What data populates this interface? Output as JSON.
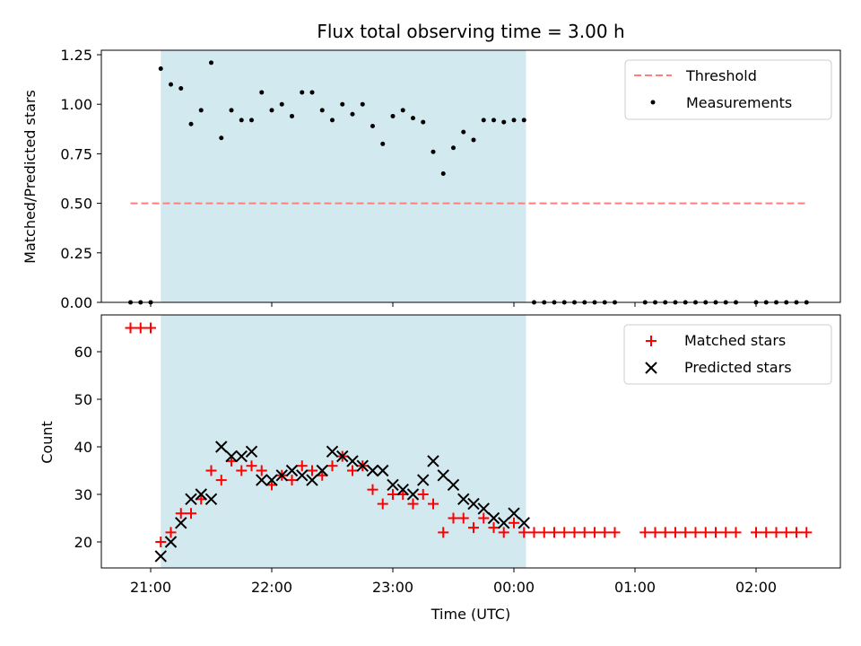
{
  "chart_data": [
    {
      "type": "scatter",
      "title": "Flux total observing time = 3.00 h",
      "xlabel": "",
      "ylabel": "Matched/Predicted stars",
      "ylim": [
        0,
        1.27
      ],
      "yticks": [
        "0.00",
        "0.25",
        "0.50",
        "0.75",
        "1.00",
        "1.25"
      ],
      "shaded_span": {
        "from": "21:05",
        "to": "00:06",
        "color": "#d3e9f0"
      },
      "legend_position": "top-right",
      "series": [
        {
          "name": "Threshold",
          "kind": "line",
          "style": "dashed",
          "color": "#ff7f7f",
          "points": [
            [
              "20:50",
              0.5
            ],
            [
              "02:25",
              0.5
            ]
          ]
        },
        {
          "name": "Measurements",
          "kind": "dots",
          "color": "#000000",
          "points": [
            [
              "20:50",
              0.0
            ],
            [
              "20:55",
              0.0
            ],
            [
              "21:00",
              0.0
            ],
            [
              "21:05",
              1.18
            ],
            [
              "21:10",
              1.1
            ],
            [
              "21:15",
              1.08
            ],
            [
              "21:20",
              0.9
            ],
            [
              "21:25",
              0.97
            ],
            [
              "21:30",
              1.21
            ],
            [
              "21:35",
              0.83
            ],
            [
              "21:40",
              0.97
            ],
            [
              "21:45",
              0.92
            ],
            [
              "21:50",
              0.92
            ],
            [
              "21:55",
              1.06
            ],
            [
              "22:00",
              0.97
            ],
            [
              "22:05",
              1.0
            ],
            [
              "22:10",
              0.94
            ],
            [
              "22:15",
              1.06
            ],
            [
              "22:20",
              1.06
            ],
            [
              "22:25",
              0.97
            ],
            [
              "22:30",
              0.92
            ],
            [
              "22:35",
              1.0
            ],
            [
              "22:40",
              0.95
            ],
            [
              "22:45",
              1.0
            ],
            [
              "22:50",
              0.89
            ],
            [
              "22:55",
              0.8
            ],
            [
              "23:00",
              0.94
            ],
            [
              "23:05",
              0.97
            ],
            [
              "23:10",
              0.93
            ],
            [
              "23:15",
              0.91
            ],
            [
              "23:20",
              0.76
            ],
            [
              "23:25",
              0.65
            ],
            [
              "23:30",
              0.78
            ],
            [
              "23:35",
              0.86
            ],
            [
              "23:40",
              0.82
            ],
            [
              "23:45",
              0.92
            ],
            [
              "23:50",
              0.92
            ],
            [
              "23:55",
              0.91
            ],
            [
              "00:00",
              0.92
            ],
            [
              "00:05",
              0.92
            ],
            [
              "00:10",
              0.0
            ],
            [
              "00:15",
              0.0
            ],
            [
              "00:20",
              0.0
            ],
            [
              "00:25",
              0.0
            ],
            [
              "00:30",
              0.0
            ],
            [
              "00:35",
              0.0
            ],
            [
              "00:40",
              0.0
            ],
            [
              "00:45",
              0.0
            ],
            [
              "00:50",
              0.0
            ],
            [
              "01:05",
              0.0
            ],
            [
              "01:10",
              0.0
            ],
            [
              "01:15",
              0.0
            ],
            [
              "01:20",
              0.0
            ],
            [
              "01:25",
              0.0
            ],
            [
              "01:30",
              0.0
            ],
            [
              "01:35",
              0.0
            ],
            [
              "01:40",
              0.0
            ],
            [
              "01:45",
              0.0
            ],
            [
              "01:50",
              0.0
            ],
            [
              "02:00",
              0.0
            ],
            [
              "02:05",
              0.0
            ],
            [
              "02:10",
              0.0
            ],
            [
              "02:15",
              0.0
            ],
            [
              "02:20",
              0.0
            ],
            [
              "02:25",
              0.0
            ]
          ]
        }
      ]
    },
    {
      "type": "scatter",
      "title": "",
      "xlabel": "Time (UTC)",
      "ylabel": "Count",
      "ylim": [
        15,
        67
      ],
      "yticks": [
        "20",
        "30",
        "40",
        "50",
        "60"
      ],
      "xticks": [
        "21:00",
        "22:00",
        "23:00",
        "00:00",
        "01:00",
        "02:00"
      ],
      "shaded_span": {
        "from": "21:05",
        "to": "00:06",
        "color": "#d3e9f0"
      },
      "legend_position": "top-right",
      "series": [
        {
          "name": "Matched stars",
          "kind": "plus",
          "color": "#ff0000",
          "points": [
            [
              "20:50",
              65
            ],
            [
              "20:55",
              65
            ],
            [
              "21:00",
              65
            ],
            [
              "21:05",
              20
            ],
            [
              "21:10",
              22
            ],
            [
              "21:15",
              26
            ],
            [
              "21:20",
              26
            ],
            [
              "21:25",
              29
            ],
            [
              "21:30",
              35
            ],
            [
              "21:35",
              33
            ],
            [
              "21:40",
              37
            ],
            [
              "21:45",
              35
            ],
            [
              "21:50",
              36
            ],
            [
              "21:55",
              35
            ],
            [
              "22:00",
              32
            ],
            [
              "22:05",
              34
            ],
            [
              "22:10",
              33
            ],
            [
              "22:15",
              36
            ],
            [
              "22:20",
              35
            ],
            [
              "22:25",
              34
            ],
            [
              "22:30",
              36
            ],
            [
              "22:35",
              38
            ],
            [
              "22:40",
              35
            ],
            [
              "22:45",
              36
            ],
            [
              "22:50",
              31
            ],
            [
              "22:55",
              28
            ],
            [
              "23:00",
              30
            ],
            [
              "23:05",
              30
            ],
            [
              "23:10",
              28
            ],
            [
              "23:15",
              30
            ],
            [
              "23:20",
              28
            ],
            [
              "23:25",
              22
            ],
            [
              "23:30",
              25
            ],
            [
              "23:35",
              25
            ],
            [
              "23:40",
              23
            ],
            [
              "23:45",
              25
            ],
            [
              "23:50",
              23
            ],
            [
              "23:55",
              22
            ],
            [
              "00:00",
              24
            ],
            [
              "00:05",
              22
            ],
            [
              "00:10",
              22
            ],
            [
              "00:15",
              22
            ],
            [
              "00:20",
              22
            ],
            [
              "00:25",
              22
            ],
            [
              "00:30",
              22
            ],
            [
              "00:35",
              22
            ],
            [
              "00:40",
              22
            ],
            [
              "00:45",
              22
            ],
            [
              "00:50",
              22
            ],
            [
              "01:05",
              22
            ],
            [
              "01:10",
              22
            ],
            [
              "01:15",
              22
            ],
            [
              "01:20",
              22
            ],
            [
              "01:25",
              22
            ],
            [
              "01:30",
              22
            ],
            [
              "01:35",
              22
            ],
            [
              "01:40",
              22
            ],
            [
              "01:45",
              22
            ],
            [
              "01:50",
              22
            ],
            [
              "02:00",
              22
            ],
            [
              "02:05",
              22
            ],
            [
              "02:10",
              22
            ],
            [
              "02:15",
              22
            ],
            [
              "02:20",
              22
            ],
            [
              "02:25",
              22
            ]
          ]
        },
        {
          "name": "Predicted stars",
          "kind": "cross",
          "color": "#000000",
          "points": [
            [
              "21:05",
              17
            ],
            [
              "21:10",
              20
            ],
            [
              "21:15",
              24
            ],
            [
              "21:20",
              29
            ],
            [
              "21:25",
              30
            ],
            [
              "21:30",
              29
            ],
            [
              "21:35",
              40
            ],
            [
              "21:40",
              38
            ],
            [
              "21:45",
              38
            ],
            [
              "21:50",
              39
            ],
            [
              "21:55",
              33
            ],
            [
              "22:00",
              33
            ],
            [
              "22:05",
              34
            ],
            [
              "22:10",
              35
            ],
            [
              "22:15",
              34
            ],
            [
              "22:20",
              33
            ],
            [
              "22:25",
              35
            ],
            [
              "22:30",
              39
            ],
            [
              "22:35",
              38
            ],
            [
              "22:40",
              37
            ],
            [
              "22:45",
              36
            ],
            [
              "22:50",
              35
            ],
            [
              "22:55",
              35
            ],
            [
              "23:00",
              32
            ],
            [
              "23:05",
              31
            ],
            [
              "23:10",
              30
            ],
            [
              "23:15",
              33
            ],
            [
              "23:20",
              37
            ],
            [
              "23:25",
              34
            ],
            [
              "23:30",
              32
            ],
            [
              "23:35",
              29
            ],
            [
              "23:40",
              28
            ],
            [
              "23:45",
              27
            ],
            [
              "23:50",
              25
            ],
            [
              "23:55",
              24
            ],
            [
              "00:00",
              26
            ],
            [
              "00:05",
              24
            ]
          ]
        }
      ]
    }
  ]
}
